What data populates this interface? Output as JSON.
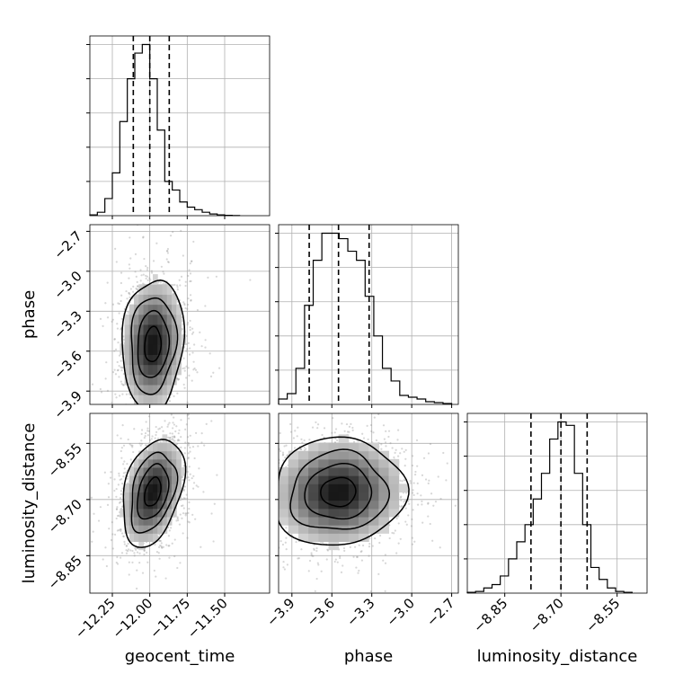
{
  "chart_data": {
    "type": "corner",
    "parameters": [
      "geocent_time",
      "phase",
      "luminosity_distance"
    ],
    "axes": {
      "geocent_time": {
        "range": [
          -12.4,
          -11.2
        ],
        "ticks": [
          -12.25,
          -12.0,
          -11.75,
          -11.5
        ],
        "tick_labels": [
          "−12.25",
          "−12.00",
          "−11.75",
          "−11.50"
        ]
      },
      "phase": {
        "range": [
          -4.0,
          -2.65
        ],
        "ticks": [
          -3.9,
          -3.6,
          -3.3,
          -3.0,
          -2.7
        ],
        "tick_labels": [
          "−3.9",
          "−3.6",
          "−3.3",
          "−3.0",
          "−2.7"
        ]
      },
      "luminosity_distance": {
        "range": [
          -8.95,
          -8.47
        ],
        "ticks": [
          -8.85,
          -8.7,
          -8.55
        ],
        "tick_labels": [
          "−8.85",
          "−8.70",
          "−8.55"
        ]
      }
    },
    "marginals": {
      "geocent_time": {
        "bin_edges": [
          -12.4,
          -12.35,
          -12.3,
          -12.25,
          -12.2,
          -12.15,
          -12.1,
          -12.05,
          -12.0,
          -11.95,
          -11.9,
          -11.85,
          -11.8,
          -11.75,
          -11.7,
          -11.65,
          -11.6,
          -11.55,
          -11.5,
          -11.45,
          -11.4
        ],
        "counts": [
          0.005,
          0.02,
          0.1,
          0.25,
          0.55,
          0.8,
          0.95,
          1.0,
          0.8,
          0.5,
          0.2,
          0.15,
          0.08,
          0.05,
          0.035,
          0.02,
          0.01,
          0.005,
          0.002,
          0.001
        ],
        "quantiles": [
          -12.11,
          -12.0,
          -11.87
        ],
        "grid": true
      },
      "phase": {
        "bin_edges": [
          -4.0,
          -3.935,
          -3.87,
          -3.805,
          -3.74,
          -3.675,
          -3.61,
          -3.545,
          -3.48,
          -3.415,
          -3.35,
          -3.285,
          -3.22,
          -3.155,
          -3.09,
          -3.025,
          -2.96,
          -2.895,
          -2.83,
          -2.765,
          -2.7
        ],
        "counts": [
          0.03,
          0.06,
          0.2,
          0.55,
          0.8,
          0.95,
          0.95,
          0.92,
          0.85,
          0.8,
          0.6,
          0.38,
          0.2,
          0.13,
          0.05,
          0.04,
          0.03,
          0.015,
          0.01,
          0.005
        ],
        "quantiles": [
          -3.77,
          -3.55,
          -3.32
        ],
        "grid": true
      },
      "luminosity_distance": {
        "bin_edges": [
          -8.95,
          -8.928,
          -8.906,
          -8.884,
          -8.862,
          -8.84,
          -8.818,
          -8.796,
          -8.774,
          -8.752,
          -8.73,
          -8.708,
          -8.686,
          -8.664,
          -8.642,
          -8.62,
          -8.598,
          -8.576,
          -8.554,
          -8.532,
          -8.51
        ],
        "counts": [
          0.005,
          0.01,
          0.03,
          0.05,
          0.1,
          0.2,
          0.3,
          0.4,
          0.55,
          0.7,
          0.9,
          1.0,
          0.98,
          0.7,
          0.4,
          0.15,
          0.08,
          0.03,
          0.01,
          0.005
        ],
        "quantiles": [
          -8.78,
          -8.7,
          -8.63
        ],
        "grid": true
      }
    },
    "joints": [
      {
        "x": "geocent_time",
        "y": "phase",
        "center": [
          -11.98,
          -3.55
        ],
        "sigma": [
          0.1,
          0.24
        ],
        "rho": 0.1
      },
      {
        "x": "geocent_time",
        "y": "luminosity_distance",
        "center": [
          -11.98,
          -8.68
        ],
        "sigma": [
          0.1,
          0.07
        ],
        "rho": 0.35
      },
      {
        "x": "phase",
        "y": "luminosity_distance",
        "center": [
          -3.55,
          -8.68
        ],
        "sigma": [
          0.24,
          0.07
        ],
        "rho": 0.05
      }
    ],
    "contour_levels": [
      0.12,
      0.32,
      0.58,
      0.86
    ],
    "grid": true
  }
}
